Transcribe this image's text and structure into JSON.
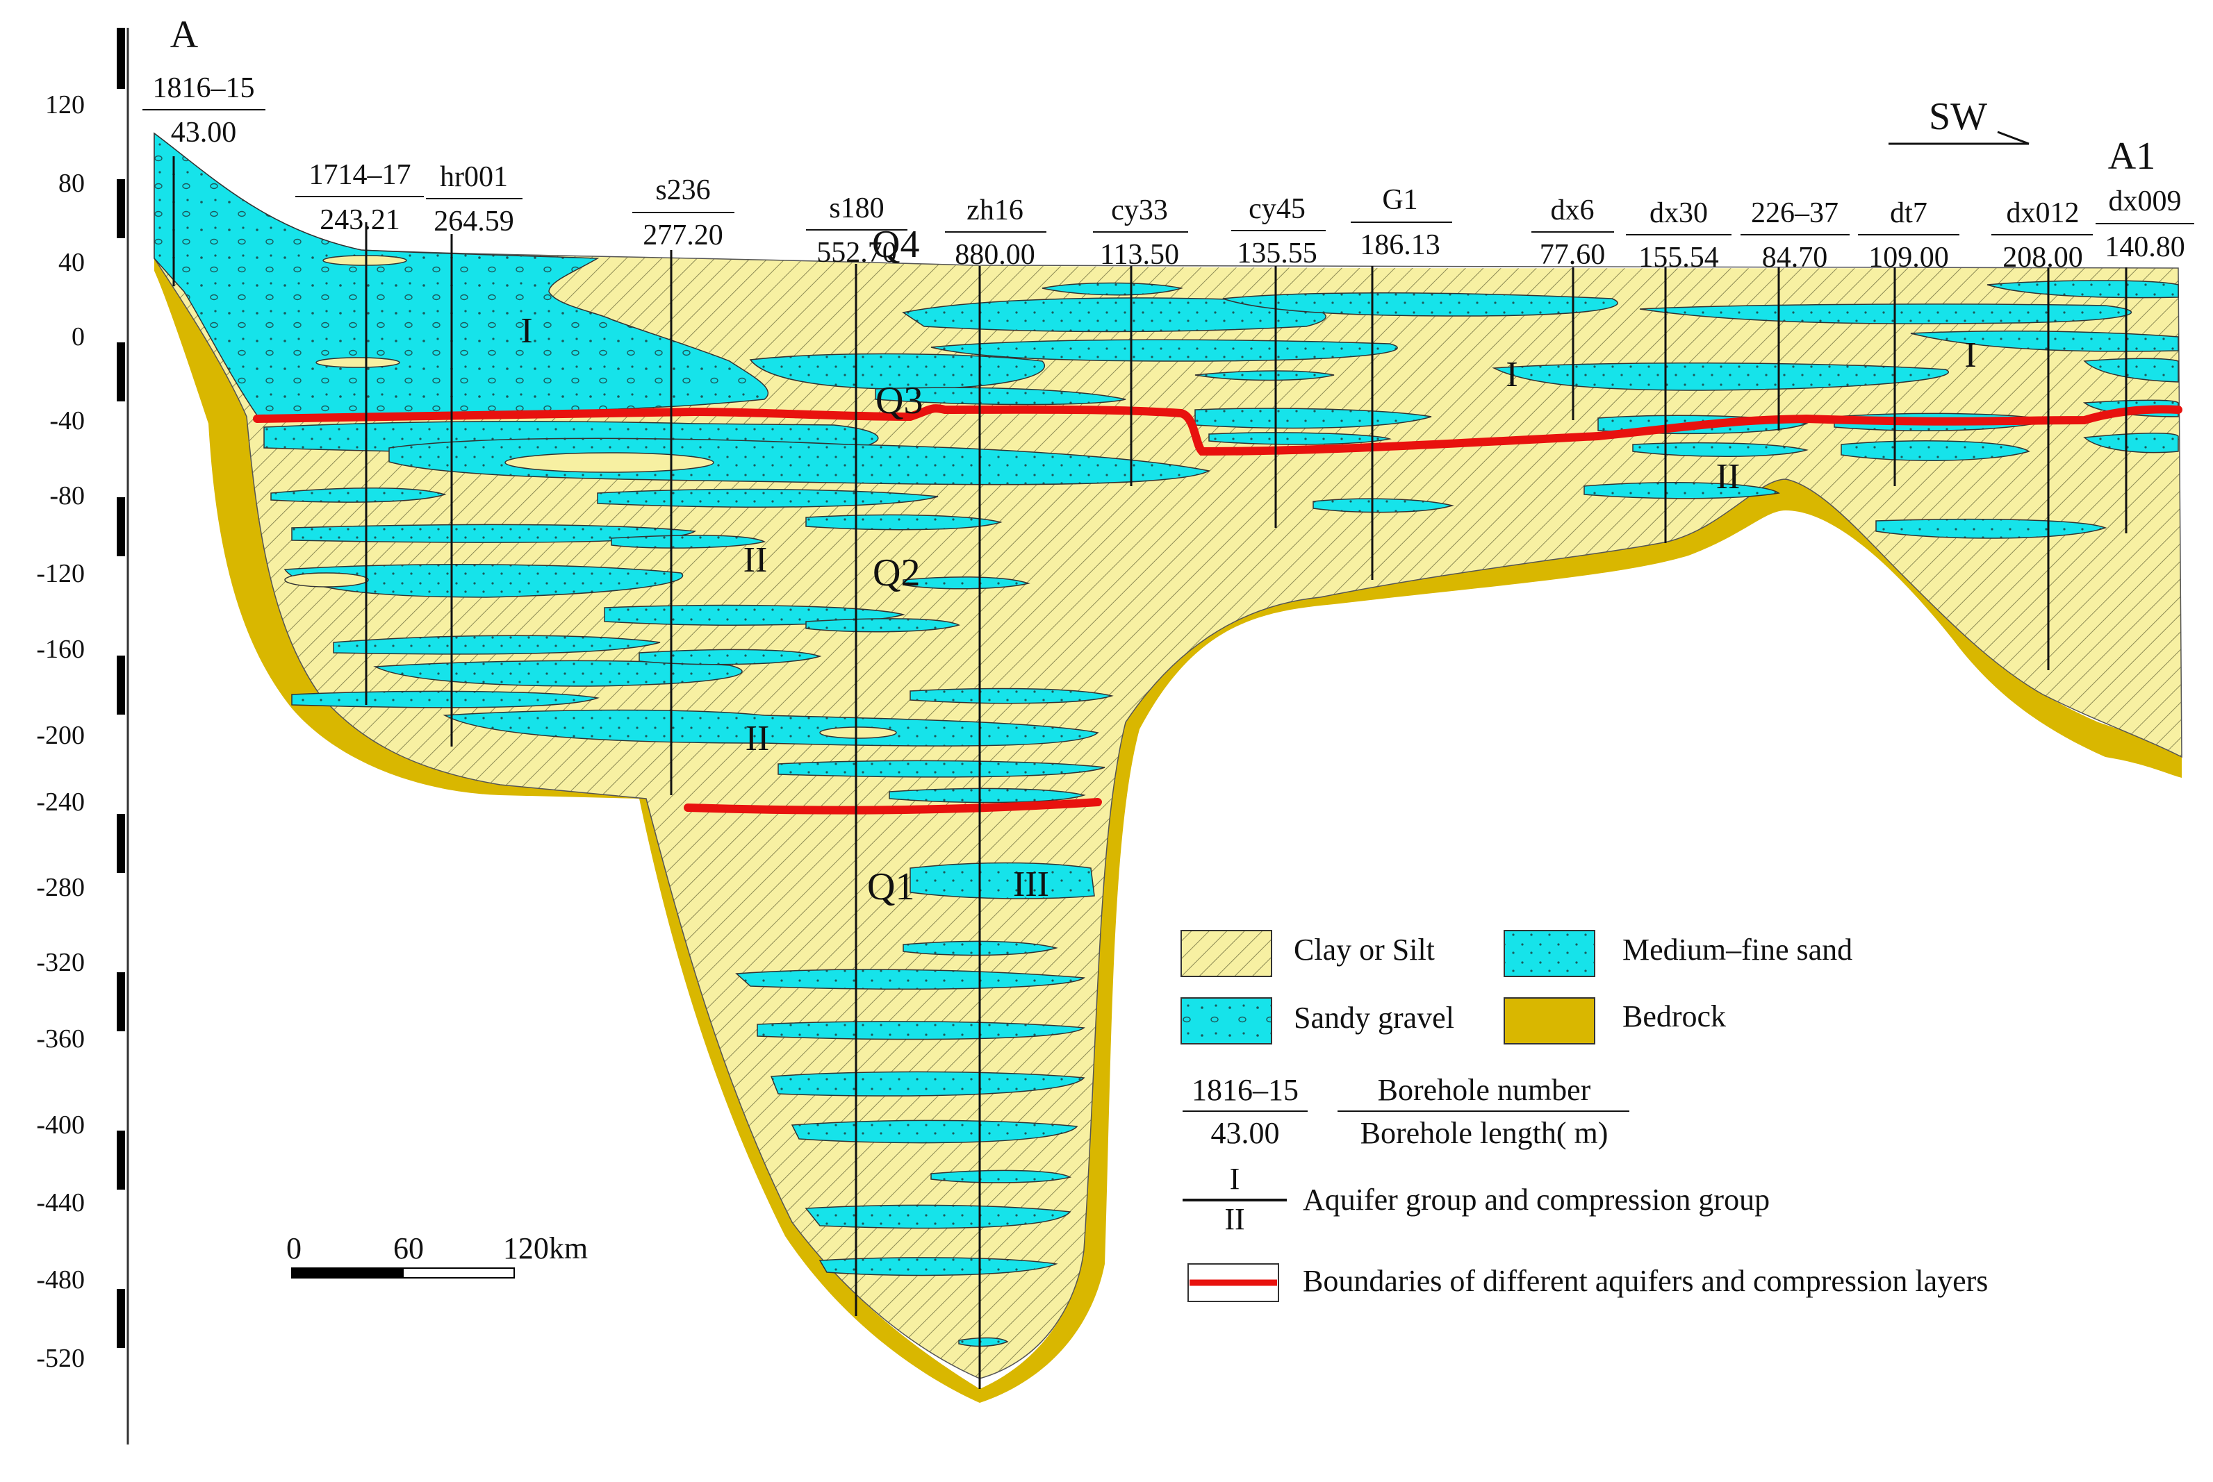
{
  "section": {
    "start_label": "A",
    "end_label": "A1",
    "direction_label": "SW"
  },
  "axis": {
    "ticks": [
      "120",
      "80",
      "40",
      "0",
      "-40",
      "-80",
      "-120",
      "-160",
      "-200",
      "-240",
      "-280",
      "-320",
      "-360",
      "-400",
      "-440",
      "-480",
      "-520"
    ]
  },
  "boreholes": [
    {
      "number": "1816–15",
      "length": "43.00"
    },
    {
      "number": "1714–17",
      "length": "243.21"
    },
    {
      "number": "hr001",
      "length": "264.59"
    },
    {
      "number": "s236",
      "length": "277.20"
    },
    {
      "number": "s180",
      "length": "552.70"
    },
    {
      "number": "zh16",
      "length": "880.00"
    },
    {
      "number": "cy33",
      "length": "113.50"
    },
    {
      "number": "cy45",
      "length": "135.55"
    },
    {
      "number": "G1",
      "length": "186.13"
    },
    {
      "number": "dx6",
      "length": "77.60"
    },
    {
      "number": "dx30",
      "length": "155.54"
    },
    {
      "number": "226–37",
      "length": "84.70"
    },
    {
      "number": "dt7",
      "length": "109.00"
    },
    {
      "number": "dx012",
      "length": "208.00"
    },
    {
      "number": "dx009",
      "length": "140.80"
    }
  ],
  "strata": {
    "q4": "Q4",
    "q3": "Q3",
    "q2": "Q2",
    "q1": "Q1"
  },
  "aquifer_groups": {
    "i": "I",
    "ii": "II",
    "iii": "III"
  },
  "scale_bar": {
    "label_0": "0",
    "label_1": "60",
    "label_2": "120km"
  },
  "legend": {
    "clay": "Clay or Silt",
    "medium_sand": "Medium–fine sand",
    "sandy_gravel": "Sandy gravel",
    "bedrock": "Bedrock",
    "example_number": "1816–15",
    "example_length": "43.00",
    "borehole_number": "Borehole number",
    "borehole_length": "Borehole length( m)",
    "group_top": "I",
    "group_bottom": "II",
    "group_label": "Aquifer group and compression group",
    "boundary_label": "Boundaries of different aquifers and compression layers"
  },
  "colors": {
    "clay": "#f7f0a2",
    "sand": "#16e3ea",
    "bedrock": "#d9b700",
    "boundary": "#e8120e"
  }
}
